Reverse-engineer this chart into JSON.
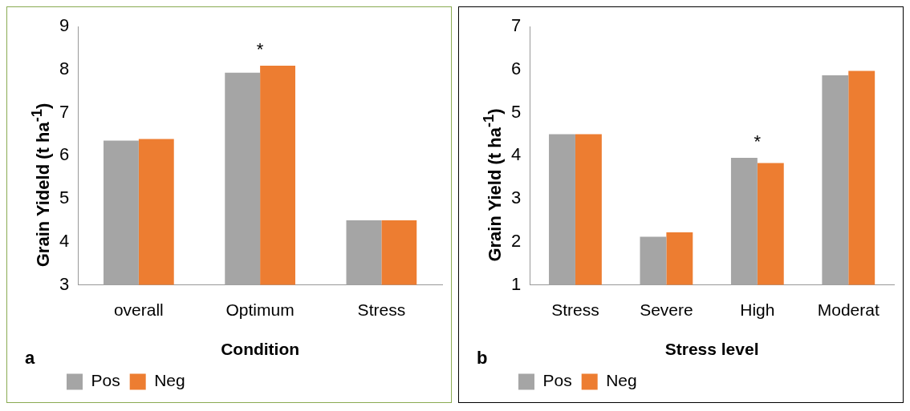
{
  "chart_data": [
    {
      "type": "bar",
      "xlabel": "Condition",
      "ylabel": "Grain Yideld (t ha$^{-1}$)",
      "categories": [
        "overall",
        "Optimum",
        "Stress"
      ],
      "series": [
        {
          "name": "Pos",
          "color": "#a5a5a5",
          "values": [
            6.35,
            7.93,
            4.5
          ]
        },
        {
          "name": "Neg",
          "color": "#ed7d31",
          "values": [
            6.39,
            8.09,
            4.5
          ]
        }
      ],
      "ylim": [
        3,
        9
      ],
      "yticks": [
        3,
        4,
        5,
        6,
        7,
        8,
        9
      ],
      "grid": false,
      "legend": "bottom left",
      "annotations": [
        {
          "text": "*",
          "x": "Optimum",
          "y": 8.09
        },
        "a"
      ]
    },
    {
      "type": "bar",
      "xlabel": "Stress level",
      "ylabel": "Grain Yield (t ha$^{-1}$)",
      "categories": [
        "Stress",
        "Severe",
        "High",
        "Moderat"
      ],
      "series": [
        {
          "name": "Pos",
          "color": "#a5a5a5",
          "values": [
            4.5,
            2.12,
            3.95,
            5.87
          ]
        },
        {
          "name": "Neg",
          "color": "#ed7d31",
          "values": [
            4.5,
            2.22,
            3.83,
            5.97
          ]
        }
      ],
      "ylim": [
        1,
        7
      ],
      "yticks": [
        1,
        2,
        3,
        4,
        5,
        6,
        7
      ],
      "grid": false,
      "legend": "bottom left",
      "annotations": [
        {
          "text": "*",
          "x": "High",
          "y": 3.95
        },
        "b"
      ]
    }
  ]
}
